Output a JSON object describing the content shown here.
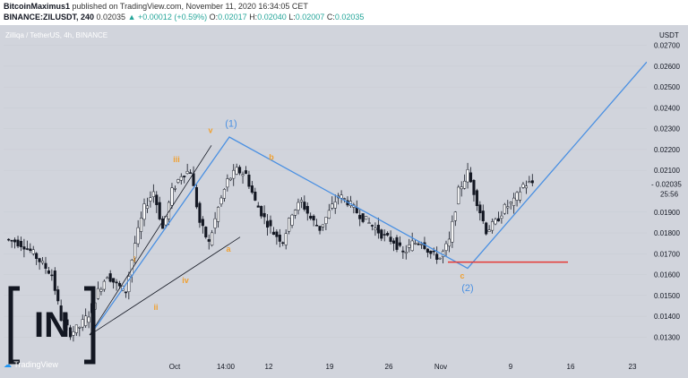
{
  "header": {
    "author": "BitcoinMaximus1",
    "published_text": "published on TradingView.com, November 11, 2020 16:34:05 CET",
    "symbol": "BINANCE:ZILUSDT, 240",
    "price": "0.02035",
    "change_arrow": "▲",
    "change": "+0.00012 (+0.59%)",
    "o_label": "O:",
    "o_val": "0.02017",
    "h_label": "H:",
    "h_val": "0.02040",
    "l_label": "L:",
    "l_val": "0.02007",
    "c_label": "C:",
    "c_val": "0.02035"
  },
  "chart_data": {
    "type": "line",
    "subtitle": "Zilliqa / TetherUS, 4h, BINANCE",
    "currency": "USDT",
    "y_ticks": [
      "0.02700",
      "0.02600",
      "0.02500",
      "0.02400",
      "0.02300",
      "0.02200",
      "0.02100",
      "0.01900",
      "0.01800",
      "0.01700",
      "0.01600",
      "0.01500",
      "0.01400",
      "0.01300"
    ],
    "ylim": [
      0.0125,
      0.0278
    ],
    "x_ticks": [
      "Oct",
      "14:00",
      "12",
      "19",
      "26",
      "Nov",
      "9",
      "16",
      "23"
    ],
    "current_price": "0.02035",
    "countdown": "25:56",
    "price_series": [
      0.0177,
      0.0176,
      0.0174,
      0.017,
      0.0165,
      0.016,
      0.0139,
      0.0132,
      0.0135,
      0.0141,
      0.0152,
      0.016,
      0.0155,
      0.0152,
      0.0175,
      0.0192,
      0.02,
      0.0182,
      0.02,
      0.0208,
      0.021,
      0.0185,
      0.0175,
      0.0192,
      0.0205,
      0.021,
      0.0208,
      0.0195,
      0.0187,
      0.018,
      0.0176,
      0.019,
      0.0195,
      0.0187,
      0.0182,
      0.019,
      0.0198,
      0.0195,
      0.019,
      0.0186,
      0.0182,
      0.0178,
      0.0176,
      0.017,
      0.0175,
      0.0176,
      0.017,
      0.0168,
      0.0176,
      0.02,
      0.0209,
      0.0195,
      0.0181,
      0.0185,
      0.0192,
      0.0195,
      0.0203,
      0.0204
    ],
    "wave_labels_blue": [
      "(1)",
      "(2)"
    ],
    "wave_labels_orange": [
      "i",
      "ii",
      "iii",
      "iv",
      "v",
      "a",
      "b",
      "c"
    ],
    "colors": {
      "background": "#d1d4dc",
      "wave_line": "#4a90e2",
      "support_line": "#e53935",
      "annotation_orange": "#f0a030",
      "candles": "#131722"
    }
  },
  "watermark": {
    "logo_text": "IN",
    "tradingview": "TradingView"
  }
}
